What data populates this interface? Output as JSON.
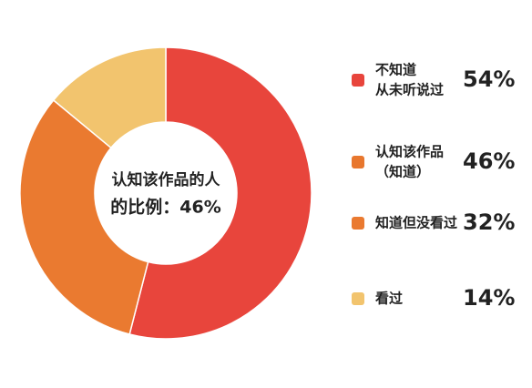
{
  "chart_data": {
    "type": "pie",
    "donut": true,
    "center_label": [
      "认知该作品的人",
      "的比例：46%"
    ],
    "categories": [
      {
        "name": [
          "不知道",
          "从未听说过"
        ],
        "value": 54,
        "value_label": "54%",
        "color": "#e8453c"
      },
      {
        "name": [
          "认知该作品",
          "（知道）"
        ],
        "value": 46,
        "value_label": "46%",
        "color": "#e8772e",
        "children": [
          {
            "name": [
              "知道但没看过"
            ],
            "value": 32,
            "value_label": "32%",
            "color": "#ea7a30"
          },
          {
            "name": [
              "看过"
            ],
            "value": 14,
            "value_label": "14%",
            "color": "#f2c46e"
          }
        ]
      }
    ]
  }
}
